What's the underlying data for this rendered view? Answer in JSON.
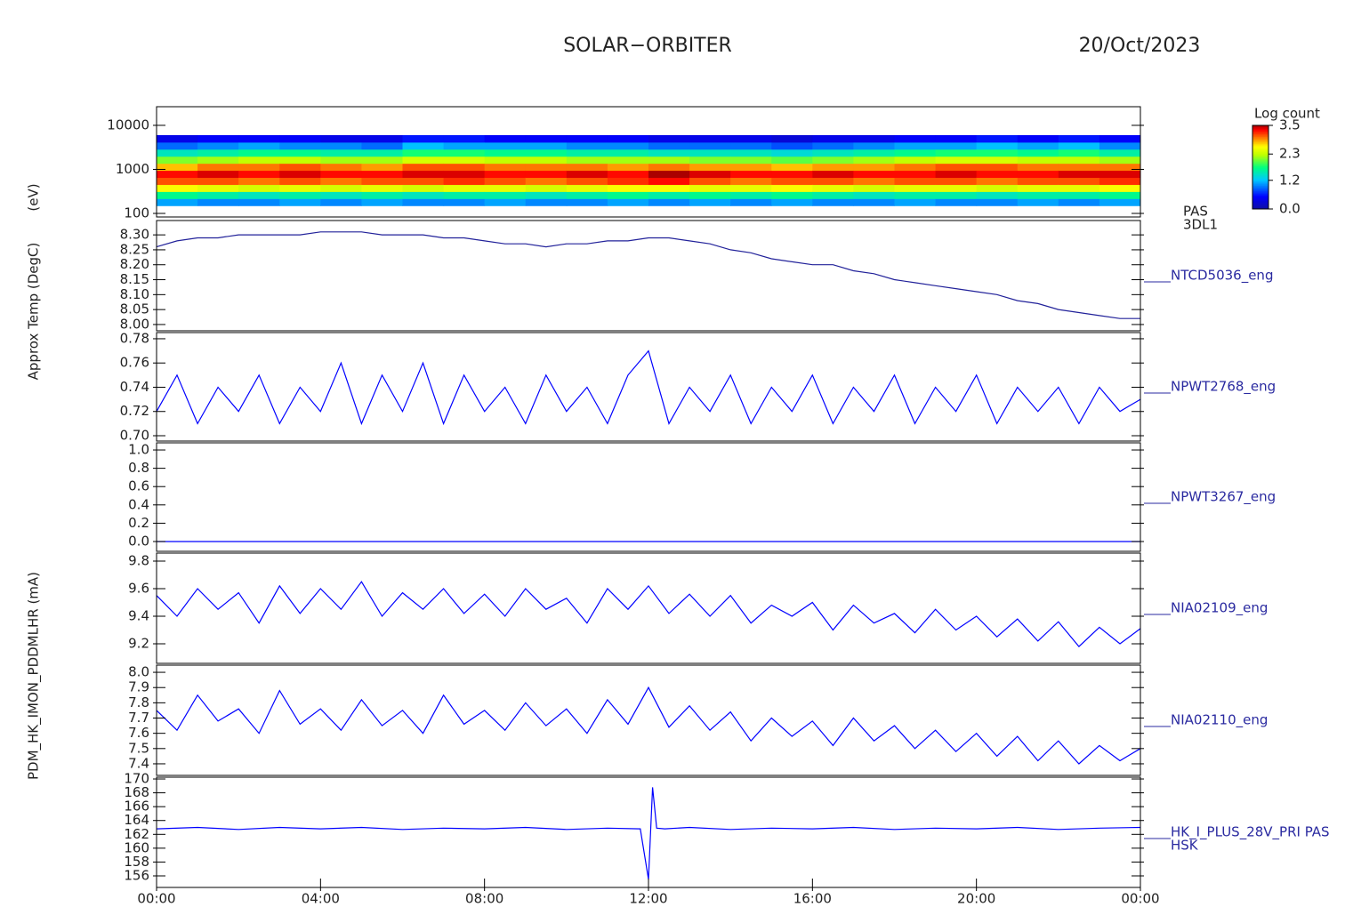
{
  "header": {
    "title": "SOLAR−ORBITER",
    "date": "20/Oct/2023"
  },
  "chart_data": [
    {
      "type": "heatmap",
      "ylabel": "(eV)",
      "labels": [
        "PAS",
        "3DL1"
      ],
      "log": true,
      "xlim": [
        0,
        24
      ],
      "ylim": [
        83,
        26500
      ],
      "yticks": [
        100,
        1000,
        10000
      ],
      "x_bins": [
        0,
        1,
        2,
        3,
        4,
        5,
        6,
        7,
        8,
        9,
        10,
        11,
        12,
        13,
        14,
        15,
        16,
        17,
        18,
        19,
        20,
        21,
        22,
        23,
        24
      ],
      "y_bins": [
        150,
        217,
        314,
        454,
        656,
        949,
        1372,
        1984,
        2869,
        4148,
        6000
      ],
      "z": [
        [
          1.1,
          1.7,
          2.6,
          3.1,
          3.3,
          2.8,
          2.1,
          1.5,
          0.9,
          0.4
        ],
        [
          1.0,
          1.6,
          2.5,
          3.1,
          3.4,
          3.0,
          2.2,
          1.6,
          1.0,
          0.5
        ],
        [
          1.0,
          1.5,
          2.4,
          3.0,
          3.3,
          3.0,
          2.3,
          1.7,
          1.1,
          0.5
        ],
        [
          1.1,
          1.6,
          2.5,
          3.1,
          3.4,
          3.1,
          2.3,
          1.7,
          1.0,
          0.5
        ],
        [
          1.0,
          1.5,
          2.4,
          3.0,
          3.3,
          3.0,
          2.2,
          1.6,
          1.0,
          0.4
        ],
        [
          1.1,
          1.6,
          2.5,
          3.1,
          3.3,
          2.9,
          2.2,
          1.6,
          0.9,
          0.4
        ],
        [
          1.0,
          1.5,
          2.4,
          3.1,
          3.4,
          3.1,
          2.4,
          1.8,
          1.2,
          0.6
        ],
        [
          1.0,
          1.6,
          2.5,
          3.2,
          3.4,
          3.1,
          2.4,
          1.8,
          1.1,
          0.6
        ],
        [
          1.1,
          1.6,
          2.5,
          3.1,
          3.3,
          3.0,
          2.3,
          1.7,
          1.1,
          0.5
        ],
        [
          1.0,
          1.5,
          2.4,
          3.0,
          3.3,
          3.0,
          2.3,
          1.7,
          1.1,
          0.5
        ],
        [
          1.0,
          1.6,
          2.5,
          3.1,
          3.4,
          3.0,
          2.2,
          1.6,
          1.0,
          0.5
        ],
        [
          1.1,
          1.7,
          2.6,
          3.2,
          3.3,
          2.9,
          2.2,
          1.6,
          1.0,
          0.5
        ],
        [
          1.0,
          1.6,
          2.6,
          3.3,
          3.5,
          3.0,
          2.2,
          1.5,
          0.9,
          0.4
        ],
        [
          1.1,
          1.7,
          2.5,
          3.1,
          3.4,
          2.9,
          2.1,
          1.5,
          0.9,
          0.4
        ],
        [
          1.0,
          1.6,
          2.5,
          3.0,
          3.3,
          2.9,
          2.1,
          1.5,
          0.9,
          0.4
        ],
        [
          1.1,
          1.7,
          2.6,
          3.1,
          3.3,
          2.8,
          2.0,
          1.4,
          0.8,
          0.3
        ],
        [
          1.0,
          1.6,
          2.5,
          3.1,
          3.4,
          2.9,
          2.1,
          1.5,
          0.9,
          0.4
        ],
        [
          1.0,
          1.5,
          2.4,
          3.0,
          3.3,
          2.9,
          2.2,
          1.6,
          1.0,
          0.4
        ],
        [
          1.1,
          1.6,
          2.5,
          3.1,
          3.3,
          3.0,
          2.3,
          1.7,
          1.1,
          0.5
        ],
        [
          1.0,
          1.6,
          2.5,
          3.1,
          3.4,
          3.1,
          2.4,
          1.8,
          1.1,
          0.5
        ],
        [
          1.0,
          1.5,
          2.4,
          3.0,
          3.3,
          3.1,
          2.4,
          1.8,
          1.2,
          0.6
        ],
        [
          1.1,
          1.6,
          2.5,
          3.1,
          3.3,
          3.0,
          2.3,
          1.7,
          1.1,
          0.5
        ],
        [
          1.0,
          1.6,
          2.5,
          3.1,
          3.4,
          3.0,
          2.3,
          1.8,
          1.2,
          0.6
        ],
        [
          1.1,
          1.7,
          2.6,
          3.2,
          3.4,
          3.0,
          2.2,
          1.6,
          1.0,
          0.5
        ]
      ],
      "colorbar": {
        "title": "Log count",
        "lim": [
          0,
          3.5
        ],
        "ticks": [
          {
            "value": 0,
            "label": "0.0"
          },
          1.2,
          2.3,
          3.5
        ]
      }
    },
    {
      "type": "line",
      "ylabel": "Approx Temp (DegC)",
      "labels": [
        "NTCD5036_eng"
      ],
      "color": "#22229a",
      "xlim": [
        0,
        24
      ],
      "ylim": [
        7.979,
        8.348
      ],
      "yticks": [
        {
          "value": 8,
          "label": "8.00"
        },
        8.05,
        {
          "value": 8.1,
          "label": "8.10"
        },
        8.15,
        {
          "value": 8.2,
          "label": "8.20"
        },
        8.25,
        {
          "value": 8.3,
          "label": "8.30"
        }
      ],
      "x": [
        0,
        0.5,
        1,
        1.5,
        2,
        2.5,
        3,
        3.5,
        4,
        4.5,
        5,
        5.5,
        6,
        6.5,
        7,
        7.5,
        8,
        8.5,
        9,
        9.5,
        10,
        10.5,
        11,
        11.5,
        12,
        12.5,
        13,
        13.5,
        14,
        14.5,
        15,
        15.5,
        16,
        16.5,
        17,
        17.5,
        18,
        18.5,
        19,
        19.5,
        20,
        20.5,
        21,
        21.5,
        22,
        22.5,
        23,
        23.5,
        24
      ],
      "values": [
        8.26,
        8.28,
        8.29,
        8.29,
        8.3,
        8.3,
        8.3,
        8.3,
        8.31,
        8.31,
        8.31,
        8.3,
        8.3,
        8.3,
        8.29,
        8.29,
        8.28,
        8.27,
        8.27,
        8.26,
        8.27,
        8.27,
        8.28,
        8.28,
        8.29,
        8.29,
        8.28,
        8.27,
        8.25,
        8.24,
        8.22,
        8.21,
        8.2,
        8.2,
        8.18,
        8.17,
        8.15,
        8.14,
        8.13,
        8.12,
        8.11,
        8.1,
        8.08,
        8.07,
        8.05,
        8.04,
        8.03,
        8.02,
        8.02
      ]
    },
    {
      "type": "line",
      "labels": [
        "NPWT2768_eng"
      ],
      "color": "#0000ff",
      "xlim": [
        0,
        24
      ],
      "ylim": [
        0.6956,
        0.7851
      ],
      "yticks": [
        {
          "value": 0.7,
          "label": "0.70"
        },
        0.72,
        0.74,
        0.76,
        0.78
      ],
      "x": [
        0,
        0.5,
        1,
        1.5,
        2,
        2.5,
        3,
        3.5,
        4,
        4.5,
        5,
        5.5,
        6,
        6.5,
        7,
        7.5,
        8,
        8.5,
        9,
        9.5,
        10,
        10.5,
        11,
        11.5,
        12,
        12.5,
        13,
        13.5,
        14,
        14.5,
        15,
        15.5,
        16,
        16.5,
        17,
        17.5,
        18,
        18.5,
        19,
        19.5,
        20,
        20.5,
        21,
        21.5,
        22,
        22.5,
        23,
        23.5,
        24
      ],
      "values": [
        0.72,
        0.75,
        0.71,
        0.74,
        0.72,
        0.75,
        0.71,
        0.74,
        0.72,
        0.76,
        0.71,
        0.75,
        0.72,
        0.76,
        0.71,
        0.75,
        0.72,
        0.74,
        0.71,
        0.75,
        0.72,
        0.74,
        0.71,
        0.75,
        0.77,
        0.71,
        0.74,
        0.72,
        0.75,
        0.71,
        0.74,
        0.72,
        0.75,
        0.71,
        0.74,
        0.72,
        0.75,
        0.71,
        0.74,
        0.72,
        0.75,
        0.71,
        0.74,
        0.72,
        0.74,
        0.71,
        0.74,
        0.72,
        0.73
      ]
    },
    {
      "type": "line",
      "labels": [
        "NPWT3267_eng"
      ],
      "color": "#0000ff",
      "xlim": [
        0,
        24
      ],
      "ylim": [
        -0.107,
        1.078
      ],
      "yticks": [
        {
          "value": 0,
          "label": "0.0"
        },
        0.2,
        0.4,
        0.6,
        0.8,
        {
          "value": 1,
          "label": "1.0"
        }
      ],
      "x": [
        0,
        0.5,
        1,
        1.5,
        2,
        2.5,
        3,
        3.5,
        4,
        4.5,
        5,
        5.5,
        6,
        6.5,
        7,
        7.5,
        8,
        8.5,
        9,
        9.5,
        10,
        10.5,
        11,
        11.5,
        12,
        12.5,
        13,
        13.5,
        14,
        14.5,
        15,
        15.5,
        16,
        16.5,
        17,
        17.5,
        18,
        18.5,
        19,
        19.5,
        20,
        20.5,
        21,
        21.5,
        22,
        22.5,
        23,
        23.5,
        24
      ],
      "values": [
        0,
        0,
        0,
        0,
        0,
        0,
        0,
        0,
        0,
        0,
        0,
        0,
        0,
        0,
        0,
        0,
        0,
        0,
        0,
        0,
        0,
        0,
        0,
        0,
        0,
        0,
        0,
        0,
        0,
        0,
        0,
        0,
        0,
        0,
        0,
        0,
        0,
        0,
        0,
        0,
        0,
        0,
        0,
        0,
        0,
        0,
        0,
        0,
        0
      ]
    },
    {
      "type": "line",
      "labels": [
        "NIA02109_eng"
      ],
      "color": "#0000ff",
      "xlim": [
        0,
        24
      ],
      "ylim": [
        9.058,
        9.858
      ],
      "yticks": [
        9.2,
        9.4,
        9.6,
        9.8
      ],
      "x": [
        0,
        0.5,
        1,
        1.5,
        2,
        2.5,
        3,
        3.5,
        4,
        4.5,
        5,
        5.5,
        6,
        6.5,
        7,
        7.5,
        8,
        8.5,
        9,
        9.5,
        10,
        10.5,
        11,
        11.5,
        12,
        12.5,
        13,
        13.5,
        14,
        14.5,
        15,
        15.5,
        16,
        16.5,
        17,
        17.5,
        18,
        18.5,
        19,
        19.5,
        20,
        20.5,
        21,
        21.5,
        22,
        22.5,
        23,
        23.5,
        24
      ],
      "values": [
        9.55,
        9.4,
        9.6,
        9.45,
        9.57,
        9.35,
        9.62,
        9.42,
        9.6,
        9.45,
        9.65,
        9.4,
        9.57,
        9.45,
        9.6,
        9.42,
        9.56,
        9.4,
        9.6,
        9.45,
        9.53,
        9.35,
        9.6,
        9.45,
        9.62,
        9.42,
        9.56,
        9.4,
        9.55,
        9.35,
        9.48,
        9.4,
        9.5,
        9.3,
        9.48,
        9.35,
        9.42,
        9.28,
        9.45,
        9.3,
        9.4,
        9.25,
        9.38,
        9.22,
        9.36,
        9.18,
        9.32,
        9.2,
        9.31
      ]
    },
    {
      "type": "line",
      "labels": [
        "NIA02110_eng"
      ],
      "color": "#0000ff",
      "xlim": [
        0,
        24
      ],
      "ylim": [
        7.324,
        8.047
      ],
      "yticks": [
        7.4,
        7.5,
        7.6,
        7.7,
        7.8,
        7.9,
        {
          "value": 8,
          "label": "8.0"
        }
      ],
      "x": [
        0,
        0.5,
        1,
        1.5,
        2,
        2.5,
        3,
        3.5,
        4,
        4.5,
        5,
        5.5,
        6,
        6.5,
        7,
        7.5,
        8,
        8.5,
        9,
        9.5,
        10,
        10.5,
        11,
        11.5,
        12,
        12.5,
        13,
        13.5,
        14,
        14.5,
        15,
        15.5,
        16,
        16.5,
        17,
        17.5,
        18,
        18.5,
        19,
        19.5,
        20,
        20.5,
        21,
        21.5,
        22,
        22.5,
        23,
        23.5,
        24
      ],
      "values": [
        7.75,
        7.62,
        7.85,
        7.68,
        7.76,
        7.6,
        7.88,
        7.66,
        7.76,
        7.62,
        7.82,
        7.65,
        7.75,
        7.6,
        7.85,
        7.66,
        7.75,
        7.62,
        7.8,
        7.65,
        7.76,
        7.6,
        7.82,
        7.66,
        7.9,
        7.64,
        7.78,
        7.62,
        7.74,
        7.55,
        7.7,
        7.58,
        7.68,
        7.52,
        7.7,
        7.55,
        7.65,
        7.5,
        7.62,
        7.48,
        7.6,
        7.45,
        7.58,
        7.42,
        7.55,
        7.4,
        7.52,
        7.42,
        7.5
      ]
    },
    {
      "type": "line",
      "ylabel": "PDM_HK_IMON_PDDMLHR (mA)",
      "labels": [
        "HK_I_PLUS_28V_PRI PAS",
        "HSK"
      ],
      "color": "#0000ff",
      "xlim": [
        0,
        24
      ],
      "ylim": [
        154.33,
        170.26
      ],
      "yticks": [
        156,
        158,
        160,
        162,
        164,
        166,
        168,
        170
      ],
      "xticks": [
        {
          "value": 0,
          "label": "00:00"
        },
        {
          "value": 4,
          "label": "04:00"
        },
        {
          "value": 8,
          "label": "08:00"
        },
        {
          "value": 12,
          "label": "12:00"
        },
        {
          "value": 16,
          "label": "16:00"
        },
        {
          "value": 20,
          "label": "20:00"
        },
        {
          "value": 24,
          "label": "00:00"
        }
      ],
      "x": [
        0,
        1,
        2,
        3,
        4,
        5,
        6,
        7,
        8,
        9,
        10,
        11,
        11.8,
        12,
        12.1,
        12.2,
        12.4,
        13,
        14,
        15,
        16,
        17,
        18,
        19,
        20,
        21,
        22,
        23,
        24
      ],
      "values": [
        162.8,
        163.0,
        162.7,
        163.0,
        162.8,
        163.0,
        162.7,
        162.9,
        162.8,
        163.0,
        162.7,
        162.9,
        162.8,
        155.5,
        168.8,
        162.9,
        162.8,
        163.0,
        162.7,
        162.9,
        162.8,
        163.0,
        162.7,
        162.9,
        162.8,
        163.0,
        162.7,
        162.9,
        163.0
      ]
    }
  ]
}
